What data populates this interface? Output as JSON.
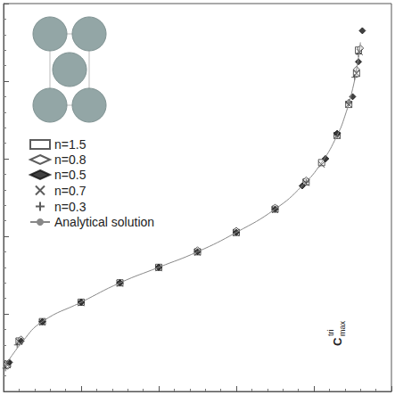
{
  "chart_data": {
    "type": "scatter",
    "xlim": [
      0,
      1
    ],
    "ylim": [
      0,
      1
    ],
    "xticks": [
      0,
      0.2,
      0.4,
      0.6,
      0.8,
      1
    ],
    "yticks": [
      0,
      0.2,
      0.4,
      0.6,
      0.8,
      1
    ],
    "tick_labels": false,
    "grid": false,
    "legend": "upper left",
    "annotation": {
      "base": "C",
      "sup": "tri",
      "sub": "max"
    },
    "series": [
      {
        "name": "n=1.5",
        "type": "scatter",
        "marker": "square",
        "color": "#333333",
        "x": [
          0.01,
          0.04,
          0.1,
          0.2,
          0.3,
          0.4,
          0.5,
          0.6,
          0.7,
          0.78,
          0.82,
          0.86,
          0.89,
          0.91,
          0.915
        ],
        "values": [
          0.07,
          0.13,
          0.18,
          0.23,
          0.28,
          0.32,
          0.36,
          0.41,
          0.47,
          0.54,
          0.59,
          0.66,
          0.74,
          0.82,
          0.88
        ]
      },
      {
        "name": "n=0.8",
        "type": "scatter",
        "marker": "diamond",
        "color": "#333333",
        "x": [
          0.01,
          0.045,
          0.1,
          0.2,
          0.3,
          0.4,
          0.5,
          0.6,
          0.7,
          0.78,
          0.83,
          0.86,
          0.89,
          0.91,
          0.92
        ],
        "values": [
          0.065,
          0.135,
          0.18,
          0.23,
          0.28,
          0.32,
          0.365,
          0.415,
          0.475,
          0.545,
          0.6,
          0.665,
          0.745,
          0.83,
          0.885
        ]
      },
      {
        "name": "n=0.5",
        "type": "scatter",
        "marker": "filled_diamond",
        "color": "#111111",
        "x": [
          0.015,
          0.045,
          0.1,
          0.2,
          0.3,
          0.4,
          0.5,
          0.6,
          0.7,
          0.77,
          0.83,
          0.86,
          0.9,
          0.915,
          0.925
        ],
        "values": [
          0.075,
          0.13,
          0.18,
          0.23,
          0.28,
          0.32,
          0.36,
          0.41,
          0.47,
          0.53,
          0.6,
          0.665,
          0.76,
          0.85,
          0.93
        ]
      },
      {
        "name": "n=0.7",
        "type": "scatter",
        "marker": "cross",
        "color": "#333333",
        "x": [
          0.01,
          0.04,
          0.1,
          0.2,
          0.3,
          0.4,
          0.5,
          0.6,
          0.7,
          0.78,
          0.82,
          0.86,
          0.89,
          0.91,
          0.918
        ],
        "values": [
          0.068,
          0.128,
          0.178,
          0.228,
          0.278,
          0.318,
          0.358,
          0.408,
          0.468,
          0.538,
          0.585,
          0.66,
          0.74,
          0.82,
          0.875
        ]
      },
      {
        "name": "n=0.3",
        "type": "scatter",
        "marker": "plus",
        "color": "#333333",
        "x": [
          0.005,
          0.035,
          0.1,
          0.2,
          0.3,
          0.4,
          0.5,
          0.6,
          0.7,
          0.78,
          0.83,
          0.86,
          0.89,
          0.905,
          0.915
        ],
        "values": [
          0.06,
          0.12,
          0.18,
          0.23,
          0.28,
          0.32,
          0.36,
          0.41,
          0.47,
          0.54,
          0.6,
          0.66,
          0.745,
          0.81,
          0.87
        ]
      },
      {
        "name": "Analytical solution",
        "type": "line",
        "line_style": "solid",
        "color": "#888888",
        "x": [
          0,
          0.05,
          0.1,
          0.2,
          0.3,
          0.4,
          0.5,
          0.6,
          0.7,
          0.77,
          0.82,
          0.86,
          0.88,
          0.9,
          0.915,
          0.92
        ],
        "values": [
          0.06,
          0.13,
          0.18,
          0.23,
          0.28,
          0.32,
          0.36,
          0.41,
          0.47,
          0.53,
          0.59,
          0.66,
          0.71,
          0.78,
          0.86,
          0.9
        ]
      }
    ]
  }
}
